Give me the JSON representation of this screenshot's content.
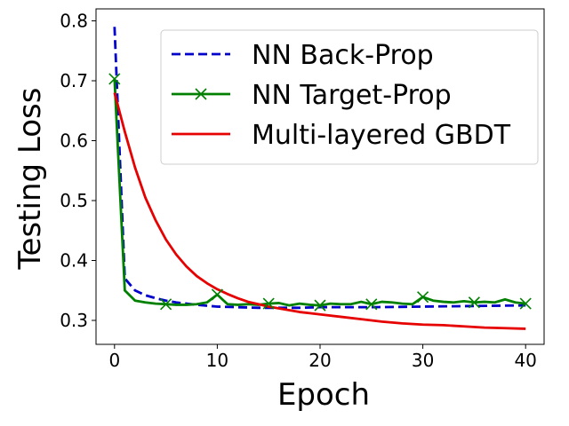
{
  "chart_data": {
    "type": "line",
    "xlabel": "Epoch",
    "ylabel": "Testing Loss",
    "xlim": [
      -1.8,
      41.8
    ],
    "ylim": [
      0.26,
      0.82
    ],
    "xticks": [
      0,
      10,
      20,
      30,
      40
    ],
    "yticks": [
      0.3,
      0.4,
      0.5,
      0.6,
      0.7,
      0.8
    ],
    "xtick_labels": [
      "0",
      "10",
      "20",
      "30",
      "40"
    ],
    "ytick_labels": [
      "0.3",
      "0.4",
      "0.5",
      "0.6",
      "0.7",
      "0.8"
    ],
    "grid": false,
    "legend_position": "top-right",
    "series": [
      {
        "name": "NN Back-Prop",
        "color": "#0000cc",
        "style": "dashed",
        "marker": "none",
        "x": [
          0,
          1,
          2,
          3,
          4,
          5,
          6,
          8,
          10,
          12,
          14,
          16,
          18,
          20,
          25,
          30,
          35,
          40
        ],
        "y": [
          0.79,
          0.37,
          0.35,
          0.342,
          0.337,
          0.333,
          0.33,
          0.326,
          0.323,
          0.322,
          0.321,
          0.321,
          0.321,
          0.322,
          0.322,
          0.323,
          0.324,
          0.325
        ]
      },
      {
        "name": "NN Target-Prop",
        "color": "#008000",
        "style": "solid",
        "marker": "x",
        "markevery": 5,
        "x": [
          0,
          1,
          2,
          3,
          4,
          5,
          6,
          7,
          8,
          9,
          10,
          11,
          12,
          13,
          14,
          15,
          16,
          17,
          18,
          19,
          20,
          21,
          22,
          23,
          24,
          25,
          26,
          27,
          28,
          29,
          30,
          31,
          32,
          33,
          34,
          35,
          36,
          37,
          38,
          39,
          40
        ],
        "y": [
          0.703,
          0.35,
          0.333,
          0.33,
          0.328,
          0.327,
          0.326,
          0.326,
          0.327,
          0.33,
          0.343,
          0.327,
          0.326,
          0.327,
          0.326,
          0.328,
          0.329,
          0.325,
          0.328,
          0.326,
          0.325,
          0.328,
          0.327,
          0.327,
          0.331,
          0.327,
          0.331,
          0.33,
          0.328,
          0.327,
          0.339,
          0.333,
          0.331,
          0.33,
          0.332,
          0.33,
          0.331,
          0.33,
          0.335,
          0.33,
          0.328
        ]
      },
      {
        "name": "Multi-layered GBDT",
        "color": "#e60000",
        "style": "solid",
        "marker": "none",
        "x": [
          0,
          1,
          2,
          3,
          4,
          5,
          6,
          7,
          8,
          9,
          10,
          11,
          12,
          13,
          14,
          15,
          16,
          17,
          18,
          19,
          20,
          22,
          24,
          26,
          28,
          30,
          32,
          34,
          36,
          38,
          40
        ],
        "y": [
          0.68,
          0.615,
          0.555,
          0.505,
          0.467,
          0.435,
          0.41,
          0.39,
          0.374,
          0.362,
          0.352,
          0.344,
          0.337,
          0.331,
          0.327,
          0.323,
          0.32,
          0.317,
          0.314,
          0.312,
          0.31,
          0.306,
          0.302,
          0.298,
          0.295,
          0.293,
          0.292,
          0.29,
          0.288,
          0.287,
          0.286
        ]
      }
    ]
  }
}
